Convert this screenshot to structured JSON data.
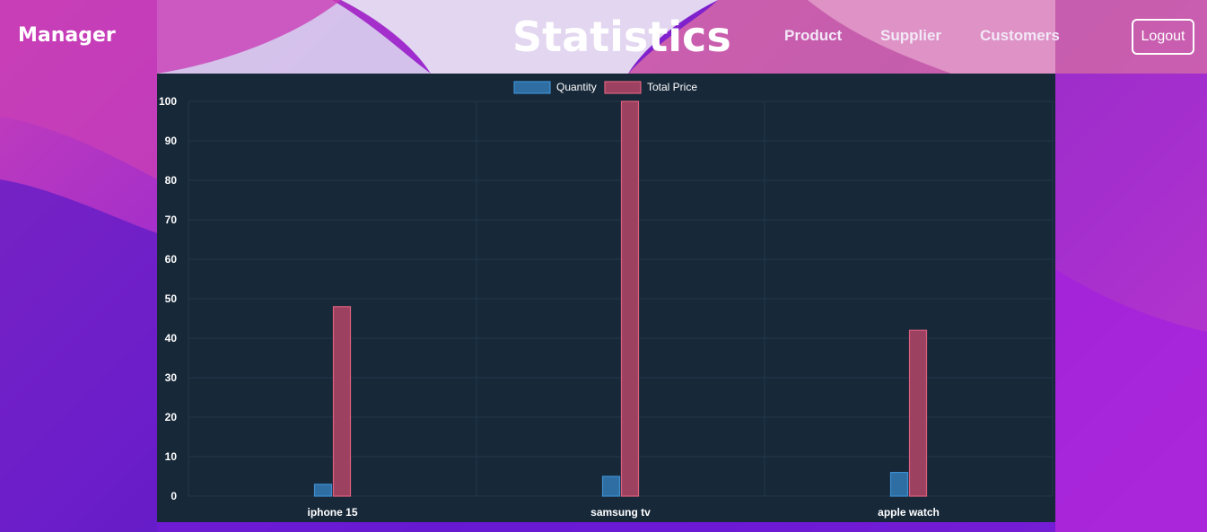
{
  "header": {
    "brand": "Manager",
    "title": "Statistics",
    "nav": [
      "Product",
      "Supplier",
      "Customers"
    ],
    "logout_label": "Logout"
  },
  "colors": {
    "quantity_fill": "#2f6ea3",
    "quantity_border": "#3d8fd1",
    "total_price_fill": "#9c4160",
    "total_price_border": "#e0607e",
    "panel_bg": "#172839",
    "grid": "#22384a"
  },
  "chart_data": {
    "type": "bar",
    "categories": [
      "iphone 15",
      "samsung tv",
      "apple watch"
    ],
    "series": [
      {
        "name": "Quantity",
        "values": [
          3,
          5,
          6
        ]
      },
      {
        "name": "Total Price",
        "values": [
          48,
          100,
          42
        ]
      }
    ],
    "ylim": [
      0,
      100
    ],
    "yticks": [
      0,
      10,
      20,
      30,
      40,
      50,
      60,
      70,
      80,
      90,
      100
    ],
    "grid": true,
    "legend": "top-center"
  }
}
